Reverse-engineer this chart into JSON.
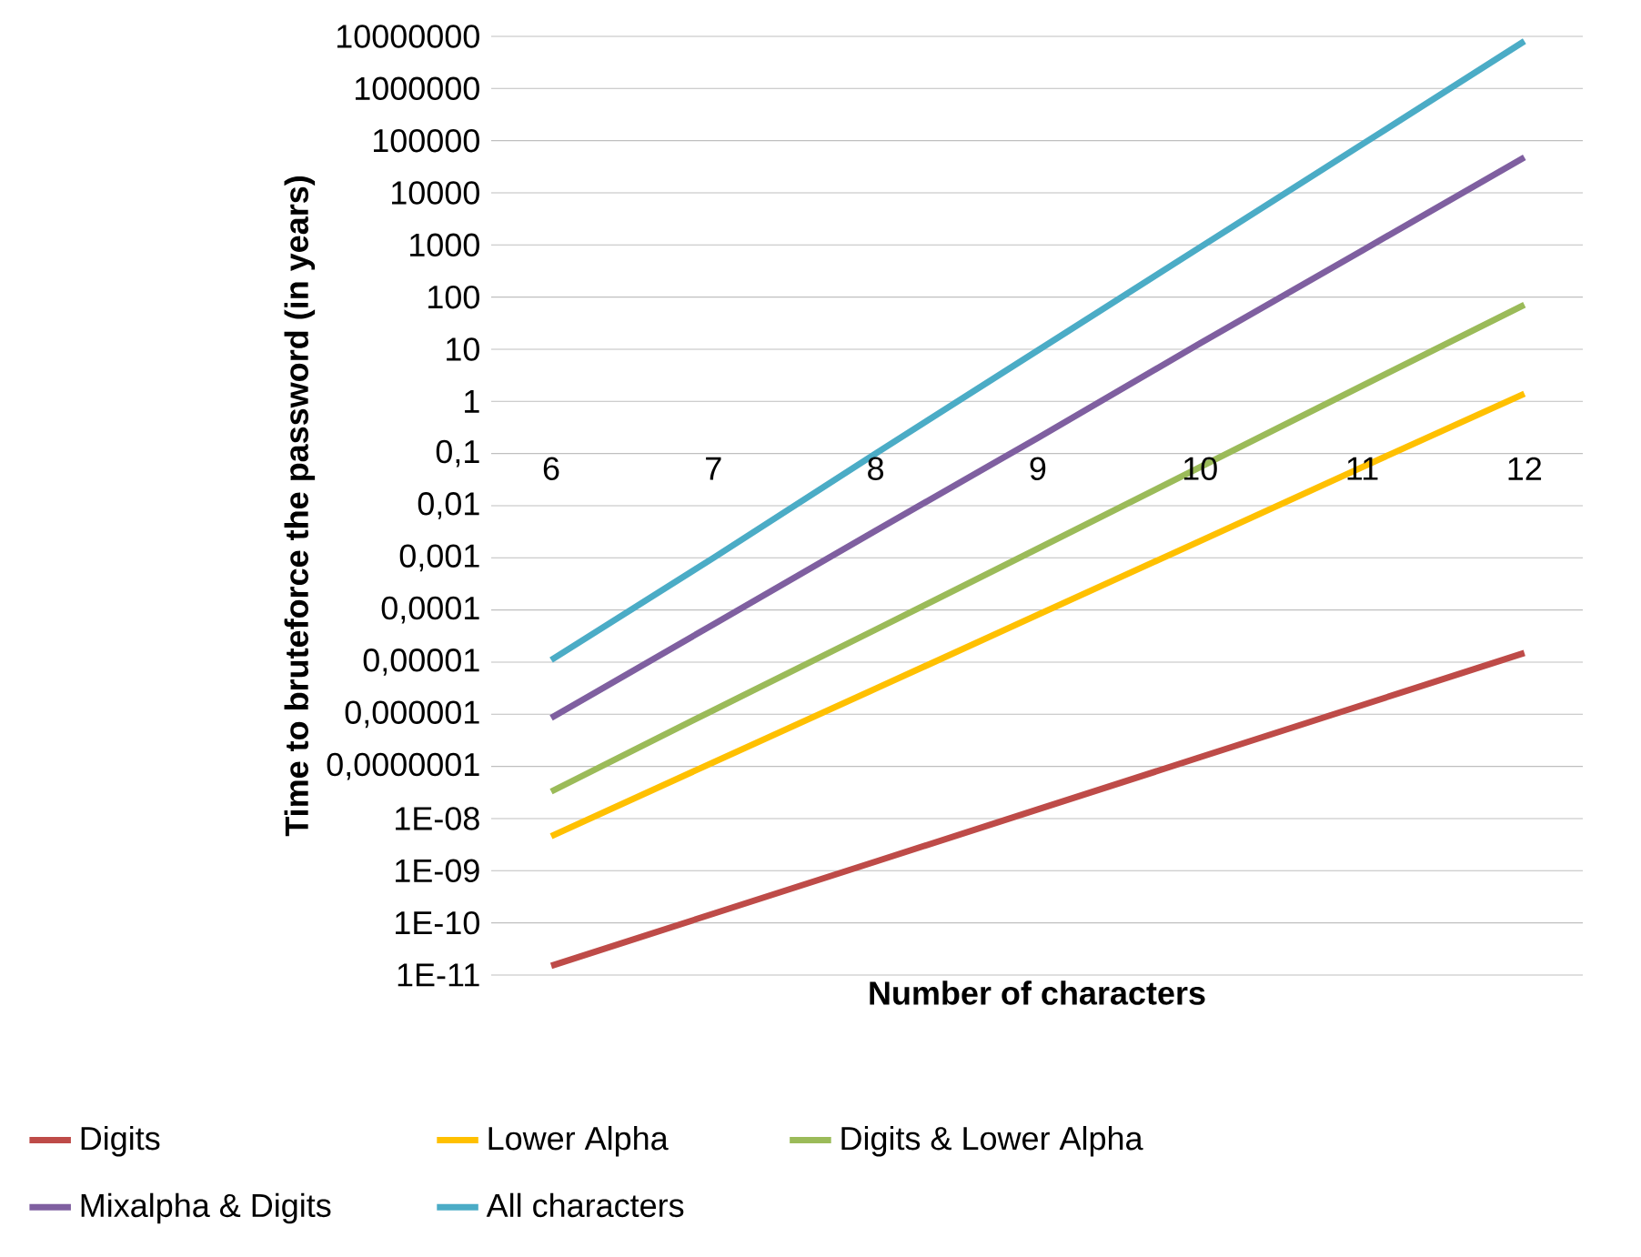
{
  "chart_data": {
    "type": "line",
    "xlabel": "Number of characters",
    "ylabel": "Time to bruteforce the password (in years)",
    "categories": [
      "6",
      "7",
      "8",
      "9",
      "10",
      "11",
      "12"
    ],
    "series": [
      {
        "name": "Digits",
        "color": "#be4b48",
        "values": [
          1.5e-11,
          1.5e-10,
          1.5e-09,
          1.5e-08,
          1.5e-07,
          1.5e-06,
          1.5e-05
        ]
      },
      {
        "name": "Lower Alpha",
        "color": "#ffc000",
        "values": [
          4.6e-09,
          1.2e-07,
          3.1e-06,
          8.1e-05,
          0.0021,
          0.055,
          1.4
        ]
      },
      {
        "name": "Digits & Lower Alpha",
        "color": "#9bbb59",
        "values": [
          3.3e-08,
          1.2e-06,
          4.2e-05,
          0.0015,
          0.055,
          2.0,
          71
        ]
      },
      {
        "name": "Mixalpha & Digits",
        "color": "#7f5fa0",
        "values": [
          8.5e-07,
          5.3e-05,
          0.0033,
          0.2,
          13,
          780,
          48000
        ]
      },
      {
        "name": "All characters",
        "color": "#4bacc6",
        "values": [
          1.1e-05,
          0.001,
          0.1,
          9.5,
          900,
          85000,
          8100000
        ]
      }
    ],
    "log": "y",
    "ylim": [
      1e-11,
      10000000
    ],
    "yticks": [
      {
        "value": 1e-11,
        "label": "1E-11"
      },
      {
        "value": 1e-10,
        "label": "1E-10"
      },
      {
        "value": 1e-09,
        "label": "1E-09"
      },
      {
        "value": 1e-08,
        "label": "1E-08"
      },
      {
        "value": 1e-07,
        "label": "0,0000001"
      },
      {
        "value": 1e-06,
        "label": "0,000001"
      },
      {
        "value": 1e-05,
        "label": "0,00001"
      },
      {
        "value": 0.0001,
        "label": "0,0001"
      },
      {
        "value": 0.001,
        "label": "0,001"
      },
      {
        "value": 0.01,
        "label": "0,01"
      },
      {
        "value": 0.1,
        "label": "0,1"
      },
      1,
      10,
      100,
      1000,
      10000,
      100000,
      1000000,
      10000000
    ],
    "grid": "y",
    "legend": "bottom",
    "marker": "none",
    "line_style": "solid"
  }
}
